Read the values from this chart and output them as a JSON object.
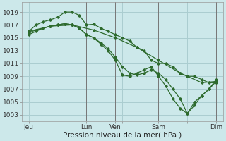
{
  "title": "",
  "xlabel": "Pression niveau de la mer( hPa )",
  "ylabel": "",
  "bg_color": "#cce8ea",
  "grid_color": "#aacdd0",
  "line_color": "#2d6a2d",
  "ylim": [
    1002,
    1020.5
  ],
  "yticks": [
    1003,
    1005,
    1007,
    1009,
    1011,
    1013,
    1015,
    1017,
    1019
  ],
  "xlim": [
    0,
    112
  ],
  "xtick_positions": [
    4,
    36,
    52,
    56,
    76,
    92,
    108
  ],
  "xtick_labels": [
    "Jeu",
    "Lun",
    "Ven",
    "",
    "Sam",
    "",
    "Dim"
  ],
  "vline_positions": [
    36,
    52,
    76,
    108
  ],
  "lines": [
    {
      "x": [
        4,
        8,
        12,
        16,
        20,
        24,
        28,
        32,
        36,
        40,
        44,
        48,
        52,
        56,
        60,
        64,
        68,
        72,
        76,
        80,
        84,
        88,
        92,
        96,
        100,
        104,
        108
      ],
      "y": [
        1016.0,
        1017.0,
        1017.5,
        1017.8,
        1018.2,
        1019.0,
        1019.0,
        1018.5,
        1017.0,
        1017.1,
        1016.5,
        1016.0,
        1015.5,
        1015.0,
        1014.5,
        1013.5,
        1013.0,
        1011.5,
        1011.0,
        1011.0,
        1010.5,
        1009.5,
        1009.0,
        1009.0,
        1008.5,
        1008.0,
        1008.0
      ]
    },
    {
      "x": [
        4,
        8,
        12,
        16,
        20,
        24,
        28,
        32,
        36,
        40,
        44,
        48,
        52,
        56,
        60,
        64,
        68,
        72,
        76,
        80,
        84,
        88,
        92,
        96,
        100,
        104,
        108
      ],
      "y": [
        1015.8,
        1016.2,
        1016.5,
        1016.8,
        1017.0,
        1017.2,
        1017.0,
        1016.5,
        1015.5,
        1015.0,
        1014.0,
        1013.0,
        1011.5,
        1009.2,
        1009.0,
        1009.5,
        1010.0,
        1010.5,
        1009.0,
        1007.5,
        1005.5,
        1004.0,
        1003.2,
        1005.0,
        1006.0,
        1007.0,
        1008.5
      ]
    },
    {
      "x": [
        4,
        8,
        12,
        16,
        20,
        24,
        28,
        32,
        36,
        40,
        44,
        48,
        52,
        56,
        60,
        64,
        68,
        72,
        76,
        80,
        84,
        88,
        92,
        96,
        100,
        104,
        108
      ],
      "y": [
        1015.5,
        1016.0,
        1016.5,
        1016.8,
        1017.0,
        1017.2,
        1017.0,
        1016.5,
        1015.5,
        1015.0,
        1014.2,
        1013.3,
        1012.0,
        1010.5,
        1009.5,
        1009.2,
        1009.5,
        1010.0,
        1009.5,
        1008.5,
        1007.0,
        1005.5,
        1003.2,
        1004.5,
        1006.0,
        1007.0,
        1008.2
      ]
    },
    {
      "x": [
        4,
        16,
        28,
        40,
        52,
        64,
        76,
        88,
        100,
        108
      ],
      "y": [
        1016.0,
        1016.8,
        1017.0,
        1016.2,
        1015.0,
        1013.5,
        1011.5,
        1009.5,
        1008.0,
        1008.2
      ]
    }
  ]
}
